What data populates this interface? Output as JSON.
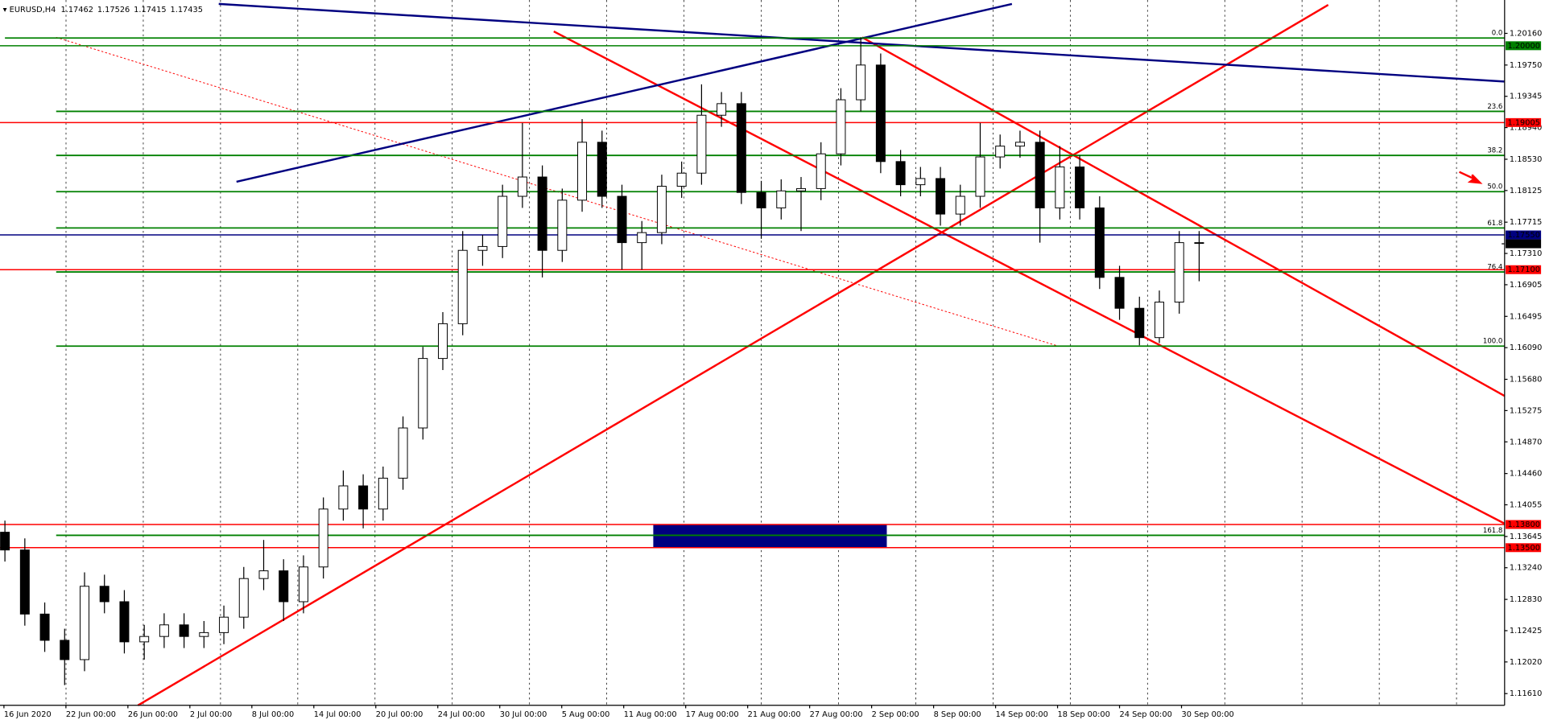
{
  "chart_data": {
    "type": "candlestick",
    "title": "EURUSD,H4",
    "ohlc_header": [
      1.17462,
      1.17526,
      1.17415,
      1.17435
    ],
    "ylim": [
      1.11458,
      1.20554
    ],
    "yticks": [
      {
        "value": 1.2016,
        "label": "1.20160"
      },
      {
        "value": 1.1975,
        "label": "1.19750"
      },
      1.19345,
      {
        "value": 1.1894,
        "label": "1.18940"
      },
      {
        "value": 1.1853,
        "label": "1.18530"
      },
      1.18125,
      1.17715,
      {
        "value": 1.1731,
        "label": "1.17310"
      },
      1.16905,
      1.16495,
      {
        "value": 1.1609,
        "label": "1.16090"
      },
      {
        "value": 1.1568,
        "label": "1.15680"
      },
      1.15275,
      {
        "value": 1.1487,
        "label": "1.14870"
      },
      {
        "value": 1.1446,
        "label": "1.14460"
      },
      1.14055,
      1.13645,
      {
        "value": 1.1324,
        "label": "1.13240"
      },
      {
        "value": 1.1283,
        "label": "1.12830"
      },
      1.12425,
      {
        "value": 1.1202,
        "label": "1.12020"
      },
      {
        "value": 1.1161,
        "label": "1.11610"
      }
    ],
    "time_labels": [
      "16 Jun 2020",
      "22 Jun 00:00",
      "26 Jun 00:00",
      "2 Jul 00:00",
      "8 Jul 00:00",
      "14 Jul 00:00",
      "20 Jul 00:00",
      "24 Jul 00:00",
      "30 Jul 00:00",
      "5 Aug 00:00",
      "11 Aug 00:00",
      "17 Aug 00:00",
      "21 Aug 00:00",
      "27 Aug 00:00",
      "2 Sep 00:00",
      "8 Sep 00:00",
      "14 Sep 00:00",
      "18 Sep 00:00",
      "24 Sep 00:00",
      "30 Sep 00:00"
    ],
    "grid": true,
    "open": [
      1.137,
      1.1347,
      1.1264,
      1.123,
      1.1205,
      1.13,
      1.128,
      1.1228,
      1.1235,
      1.125,
      1.1235,
      1.124,
      1.126,
      1.131,
      1.132,
      1.128,
      1.1325,
      1.14,
      1.143,
      1.14,
      1.144,
      1.1505,
      1.1595,
      1.164,
      1.1735,
      1.174,
      1.1805,
      1.183,
      1.1735,
      1.18,
      1.1875,
      1.1805,
      1.1745,
      1.1758,
      1.1818,
      1.1835,
      1.191,
      1.1925,
      1.181,
      1.179,
      1.1812,
      1.1815,
      1.186,
      1.193,
      1.1975,
      1.185,
      1.182,
      1.1828,
      1.1782,
      1.1805,
      1.1856,
      1.187,
      1.1875,
      1.179,
      1.1843,
      1.179,
      1.17,
      1.166,
      1.1622,
      1.1668,
      1.1745
    ],
    "high": [
      1.1385,
      1.1362,
      1.1279,
      1.1245,
      1.1318,
      1.1315,
      1.1295,
      1.125,
      1.1265,
      1.1265,
      1.1255,
      1.1275,
      1.1325,
      1.136,
      1.1335,
      1.134,
      1.1415,
      1.145,
      1.1445,
      1.1455,
      1.152,
      1.161,
      1.1655,
      1.176,
      1.1755,
      1.182,
      1.19,
      1.1845,
      1.1815,
      1.1905,
      1.189,
      1.182,
      1.1773,
      1.1833,
      1.185,
      1.195,
      1.194,
      1.194,
      1.1825,
      1.1827,
      1.183,
      1.1875,
      1.1945,
      1.2011,
      1.199,
      1.1865,
      1.1843,
      1.1843,
      1.182,
      1.19,
      1.1885,
      1.189,
      1.189,
      1.187,
      1.1858,
      1.1805,
      1.1715,
      1.1675,
      1.1683,
      1.176,
      1.176
    ],
    "low": [
      1.1332,
      1.1249,
      1.1215,
      1.1172,
      1.119,
      1.1265,
      1.1213,
      1.1205,
      1.122,
      1.122,
      1.122,
      1.1225,
      1.1245,
      1.1295,
      1.1255,
      1.1265,
      1.131,
      1.1385,
      1.1375,
      1.1385,
      1.1425,
      1.149,
      1.158,
      1.1625,
      1.1715,
      1.1725,
      1.179,
      1.17,
      1.172,
      1.1785,
      1.179,
      1.171,
      1.171,
      1.1743,
      1.1803,
      1.182,
      1.1895,
      1.1795,
      1.175,
      1.1775,
      1.176,
      1.18,
      1.1845,
      1.1915,
      1.1835,
      1.1805,
      1.1805,
      1.1767,
      1.1767,
      1.179,
      1.1841,
      1.1855,
      1.1745,
      1.1775,
      1.1775,
      1.1685,
      1.1645,
      1.1612,
      1.1615,
      1.1653,
      1.1695
    ],
    "close": [
      1.1347,
      1.1264,
      1.123,
      1.1205,
      1.13,
      1.128,
      1.1228,
      1.1235,
      1.125,
      1.1235,
      1.124,
      1.126,
      1.131,
      1.132,
      1.128,
      1.1325,
      1.14,
      1.143,
      1.14,
      1.144,
      1.1505,
      1.1595,
      1.164,
      1.1735,
      1.174,
      1.1805,
      1.183,
      1.1735,
      1.18,
      1.1875,
      1.1805,
      1.1745,
      1.1758,
      1.1818,
      1.1835,
      1.191,
      1.1925,
      1.181,
      1.179,
      1.1812,
      1.1815,
      1.186,
      1.193,
      1.1975,
      1.185,
      1.182,
      1.1828,
      1.1782,
      1.1805,
      1.1856,
      1.187,
      1.1875,
      1.179,
      1.1843,
      1.179,
      1.17,
      1.166,
      1.1622,
      1.1668,
      1.1745,
      1.1744
    ],
    "levels": [
      {
        "value": 1.2,
        "label": "1.20000",
        "color": "#008000"
      },
      {
        "value": 1.19005,
        "label": "1.19005",
        "color": "#ff0000"
      },
      {
        "value": 1.1755,
        "label": "1.17550",
        "color": "#000080"
      },
      {
        "value": 1.171,
        "label": "1.17100",
        "color": "#ff0000"
      },
      {
        "value": 1.138,
        "label": "1.13800",
        "color": "#ff0000"
      },
      {
        "value": 1.135,
        "label": "1.13500",
        "color": "#ff0000"
      }
    ],
    "bid": {
      "value": 1.17435,
      "label": "1.17435",
      "color": "#000000"
    },
    "fib_color": "#008000",
    "fib_levels": [
      {
        "label": "0.0",
        "value": 1.201
      },
      {
        "label": "23.6",
        "value": 1.1915
      },
      {
        "label": "38.2",
        "value": 1.1858
      },
      {
        "label": "50.0",
        "value": 1.1811
      },
      {
        "label": "61.8",
        "value": 1.1764
      },
      {
        "label": "76.4",
        "value": 1.1707
      },
      {
        "label": "100.0",
        "value": 1.1611
      },
      {
        "label": "161.8",
        "value": 1.1366
      }
    ]
  }
}
